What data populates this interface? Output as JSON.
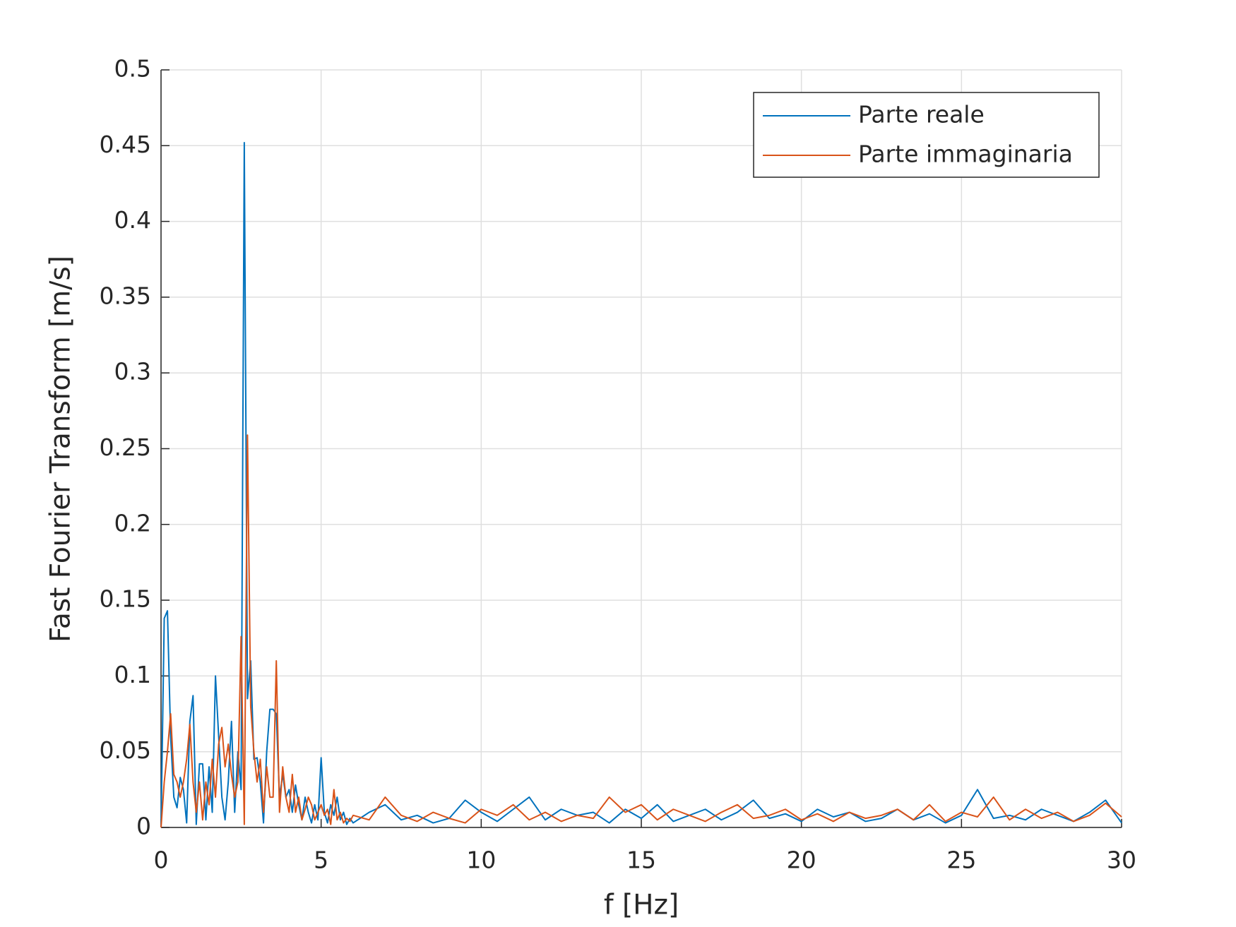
{
  "chart_data": {
    "type": "line",
    "xlabel": "f [Hz]",
    "ylabel": "Fast Fourier Transform [m/s]",
    "x": [
      0,
      0.1,
      0.2,
      0.3,
      0.4,
      0.5,
      0.6,
      0.7,
      0.8,
      0.9,
      1.0,
      1.1,
      1.2,
      1.3,
      1.4,
      1.5,
      1.6,
      1.7,
      1.8,
      1.9,
      2.0,
      2.1,
      2.2,
      2.3,
      2.4,
      2.5,
      2.6,
      2.7,
      2.8,
      2.9,
      3.0,
      3.1,
      3.2,
      3.3,
      3.4,
      3.5,
      3.6,
      3.7,
      3.8,
      3.9,
      4.0,
      4.1,
      4.2,
      4.3,
      4.4,
      4.5,
      4.6,
      4.7,
      4.8,
      4.9,
      5.0,
      5.1,
      5.2,
      5.3,
      5.4,
      5.5,
      5.6,
      5.7,
      5.8,
      5.9,
      6.0,
      6.5,
      7,
      7.5,
      8,
      8.5,
      9,
      9.5,
      10,
      10.5,
      11,
      11.5,
      12,
      12.5,
      13,
      13.5,
      14,
      14.5,
      15,
      15.5,
      16,
      16.5,
      17,
      17.5,
      18,
      18.5,
      19,
      19.5,
      20,
      20.5,
      21,
      21.5,
      22,
      22.5,
      23,
      23.5,
      24,
      24.5,
      25,
      25.5,
      26,
      26.5,
      27,
      27.5,
      28,
      28.5,
      29,
      29.5,
      30
    ],
    "series": [
      {
        "name": "Parte reale",
        "color": "#0072BD",
        "values": [
          0,
          0.138,
          0.143,
          0.06,
          0.02,
          0.013,
          0.033,
          0.025,
          0.003,
          0.07,
          0.087,
          0.002,
          0.042,
          0.042,
          0.005,
          0.04,
          0.01,
          0.1,
          0.06,
          0.02,
          0.005,
          0.03,
          0.07,
          0.01,
          0.05,
          0.025,
          0.452,
          0.085,
          0.11,
          0.045,
          0.046,
          0.03,
          0.003,
          0.05,
          0.078,
          0.078,
          0.075,
          0.02,
          0.035,
          0.02,
          0.025,
          0.01,
          0.028,
          0.015,
          0.005,
          0.02,
          0.01,
          0.003,
          0.015,
          0.005,
          0.046,
          0.01,
          0.003,
          0.015,
          0.008,
          0.02,
          0.005,
          0.01,
          0.002,
          0.006,
          0.003,
          0.01,
          0.015,
          0.005,
          0.008,
          0.003,
          0.006,
          0.018,
          0.01,
          0.004,
          0.012,
          0.02,
          0.005,
          0.012,
          0.008,
          0.01,
          0.003,
          0.012,
          0.006,
          0.015,
          0.004,
          0.008,
          0.012,
          0.005,
          0.01,
          0.018,
          0.006,
          0.009,
          0.004,
          0.012,
          0.007,
          0.01,
          0.004,
          0.006,
          0.012,
          0.005,
          0.009,
          0.003,
          0.008,
          0.025,
          0.006,
          0.008,
          0.005,
          0.012,
          0.008,
          0.004,
          0.01,
          0.018,
          0.003
        ]
      },
      {
        "name": "Parte immaginaria",
        "color": "#D95319",
        "values": [
          0,
          0.03,
          0.05,
          0.075,
          0.035,
          0.03,
          0.02,
          0.03,
          0.045,
          0.068,
          0.03,
          0.01,
          0.03,
          0.005,
          0.03,
          0.015,
          0.045,
          0.02,
          0.055,
          0.066,
          0.04,
          0.055,
          0.035,
          0.02,
          0.03,
          0.126,
          0.002,
          0.259,
          0.08,
          0.05,
          0.03,
          0.045,
          0.01,
          0.04,
          0.02,
          0.02,
          0.11,
          0.01,
          0.04,
          0.02,
          0.01,
          0.035,
          0.01,
          0.02,
          0.005,
          0.012,
          0.02,
          0.015,
          0.005,
          0.01,
          0.015,
          0.008,
          0.012,
          0.002,
          0.025,
          0.005,
          0.01,
          0.003,
          0.006,
          0.004,
          0.008,
          0.005,
          0.02,
          0.008,
          0.004,
          0.01,
          0.006,
          0.003,
          0.012,
          0.008,
          0.015,
          0.005,
          0.01,
          0.004,
          0.008,
          0.006,
          0.02,
          0.01,
          0.015,
          0.005,
          0.012,
          0.008,
          0.004,
          0.01,
          0.015,
          0.006,
          0.008,
          0.012,
          0.005,
          0.009,
          0.004,
          0.01,
          0.006,
          0.008,
          0.012,
          0.005,
          0.015,
          0.004,
          0.01,
          0.007,
          0.02,
          0.005,
          0.012,
          0.006,
          0.01,
          0.004,
          0.008,
          0.016,
          0.007
        ]
      }
    ],
    "xlim": [
      0,
      30
    ],
    "xticks": [
      0,
      5,
      10,
      15,
      20,
      25,
      30
    ],
    "ylim": [
      0,
      0.5
    ],
    "yticks": [
      0,
      0.05,
      0.1,
      0.15,
      0.2,
      0.25,
      0.3,
      0.35,
      0.4,
      0.45,
      0.5
    ],
    "grid": true,
    "legend": "northeast"
  }
}
